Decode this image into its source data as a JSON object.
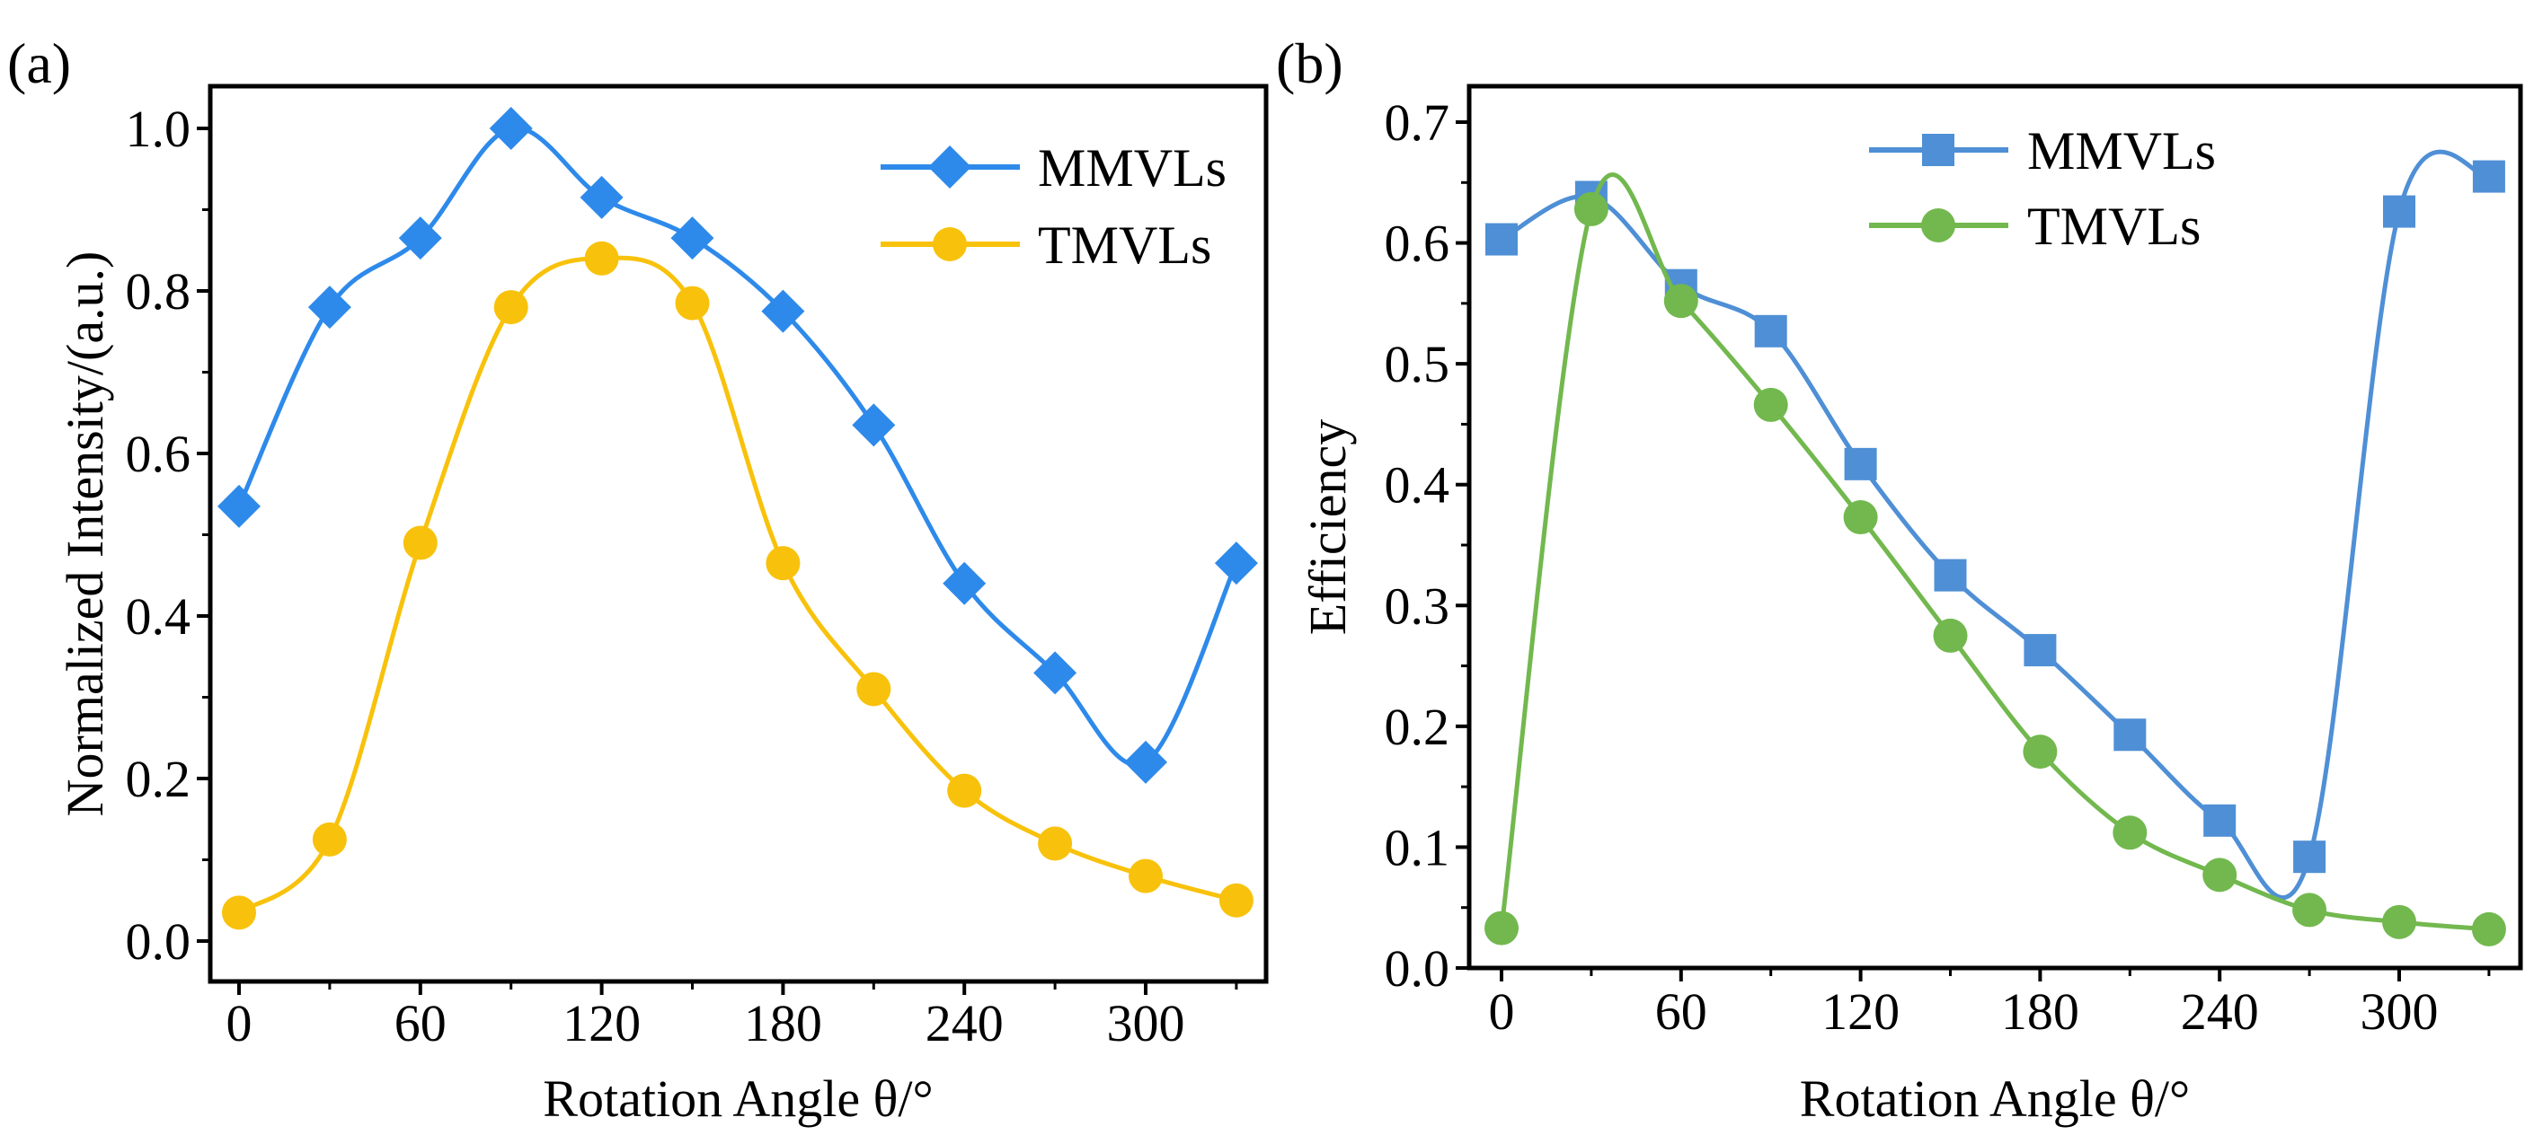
{
  "chart_data": [
    {
      "type": "line",
      "panel_label": "(a)",
      "xlabel": "Rotation Angle θ/°",
      "ylabel": "Normalized Intensity/(a.u.)",
      "xlim": [
        -8,
        339
      ],
      "ylim": [
        -0.05,
        1.05
      ],
      "xticks": [
        0,
        60,
        120,
        180,
        240,
        300
      ],
      "xtick_labels": [
        "0",
        "60",
        "120",
        "180",
        "240",
        "300"
      ],
      "yticks": [
        0,
        0.2,
        0.4,
        0.6,
        0.8,
        1.0
      ],
      "ytick_labels": [
        "0.0",
        "0.2",
        "0.4",
        "0.6",
        "0.8",
        "1.0"
      ],
      "legend_position": "top-right",
      "x": [
        0,
        30,
        60,
        90,
        120,
        150,
        180,
        210,
        240,
        270,
        300,
        330
      ],
      "series": [
        {
          "name": "MMVLs",
          "marker": "diamond",
          "color": "#2E8AEA",
          "values": [
            0.535,
            0.78,
            0.865,
            1.0,
            0.915,
            0.865,
            0.775,
            0.635,
            0.44,
            0.33,
            0.22,
            0.465
          ]
        },
        {
          "name": "TMVLs",
          "marker": "circle",
          "color": "#F8C20C",
          "values": [
            0.035,
            0.125,
            0.49,
            0.78,
            0.84,
            0.785,
            0.465,
            0.31,
            0.185,
            0.12,
            0.08,
            0.05
          ]
        }
      ]
    },
    {
      "type": "line",
      "panel_label": "(b)",
      "xlabel": "Rotation Angle θ/°",
      "ylabel": "Efficiency",
      "xlim": [
        -8,
        339
      ],
      "ylim": [
        0,
        0.73
      ],
      "xticks": [
        0,
        60,
        120,
        180,
        240,
        300
      ],
      "xtick_labels": [
        "0",
        "60",
        "120",
        "180",
        "240",
        "300"
      ],
      "yticks": [
        0,
        0.1,
        0.2,
        0.3,
        0.4,
        0.5,
        0.6,
        0.7
      ],
      "ytick_labels": [
        "0.0",
        "0.1",
        "0.2",
        "0.3",
        "0.4",
        "0.5",
        "0.6",
        "0.7"
      ],
      "legend_position": "top-center",
      "x": [
        0,
        30,
        60,
        90,
        120,
        150,
        180,
        210,
        240,
        270,
        300,
        330
      ],
      "series": [
        {
          "name": "MMVLs",
          "marker": "square",
          "color": "#4F8FD5",
          "values": [
            0.603,
            0.638,
            0.565,
            0.527,
            0.417,
            0.325,
            0.263,
            0.193,
            0.122,
            0.092,
            0.626,
            0.655
          ]
        },
        {
          "name": "TMVLs",
          "marker": "circle",
          "color": "#72B84E",
          "values": [
            0.033,
            0.628,
            0.552,
            0.466,
            0.373,
            0.275,
            0.179,
            0.112,
            0.077,
            0.048,
            0.038,
            0.032
          ]
        }
      ]
    }
  ]
}
